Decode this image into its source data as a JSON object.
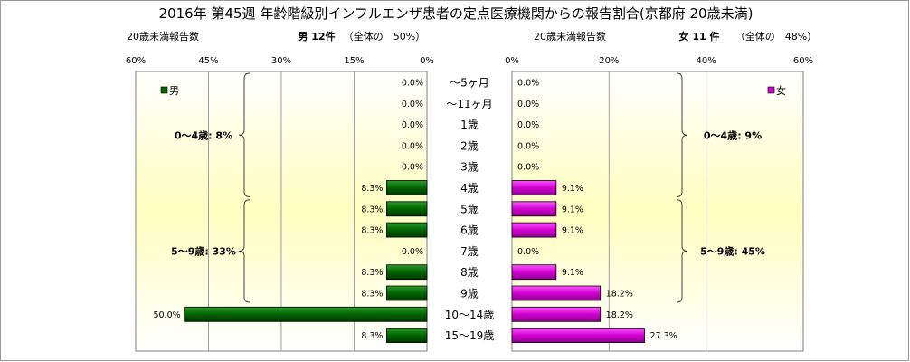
{
  "chart_data": {
    "type": "bar",
    "title": "2016年 第45週 年齢階級別インフルエンザ患者の定点医療機関からの報告割合(京都府 20歳未満)",
    "categories": [
      "～5ヶ月",
      "～11ヶ月",
      "1歳",
      "2歳",
      "3歳",
      "4歳",
      "5歳",
      "6歳",
      "7歳",
      "8歳",
      "9歳",
      "10～14歳",
      "15～19歳"
    ],
    "left_panel": {
      "header_left": "20歳未満報告数",
      "header_main": "男 12件",
      "header_pct": "（全体の　50%）",
      "xlim": [
        0,
        60
      ],
      "direction": "reversed",
      "ticks": [
        "60%",
        "45%",
        "30%",
        "15%",
        "0%"
      ],
      "tick_values": [
        60,
        45,
        30,
        15,
        0
      ],
      "series": [
        {
          "name": "男",
          "color": "#006400",
          "values": [
            0.0,
            0.0,
            0.0,
            0.0,
            0.0,
            8.3,
            8.3,
            8.3,
            0.0,
            8.3,
            8.3,
            50.0,
            8.3
          ],
          "labels": [
            "0.0%",
            "0.0%",
            "0.0%",
            "0.0%",
            "0.0%",
            "8.3%",
            "8.3%",
            "8.3%",
            "0.0%",
            "8.3%",
            "8.3%",
            "50.0%",
            "8.3%"
          ]
        }
      ],
      "groups": [
        {
          "label": "0～4歳: 8%",
          "from": 0,
          "to": 5
        },
        {
          "label": "5～9歳: 33%",
          "from": 6,
          "to": 10
        }
      ]
    },
    "right_panel": {
      "header_left": "20歳未満報告数",
      "header_main": "女 11 件",
      "header_pct": "（全体の　48%）",
      "xlim": [
        0,
        60
      ],
      "ticks": [
        "0%",
        "20%",
        "40%",
        "60%"
      ],
      "tick_values": [
        0,
        20,
        40,
        60
      ],
      "series": [
        {
          "name": "女",
          "color": "#cc00cc",
          "values": [
            0.0,
            0.0,
            0.0,
            0.0,
            0.0,
            9.1,
            9.1,
            9.1,
            0.0,
            9.1,
            18.2,
            18.2,
            27.3
          ],
          "labels": [
            "0.0%",
            "0.0%",
            "0.0%",
            "0.0%",
            "0.0%",
            "9.1%",
            "9.1%",
            "9.1%",
            "0.0%",
            "9.1%",
            "18.2%",
            "18.2%",
            "27.3%"
          ]
        }
      ],
      "groups": [
        {
          "label": "0～4歳: 9%",
          "from": 0,
          "to": 5
        },
        {
          "label": "5～9歳: 45%",
          "from": 6,
          "to": 10
        }
      ]
    }
  }
}
